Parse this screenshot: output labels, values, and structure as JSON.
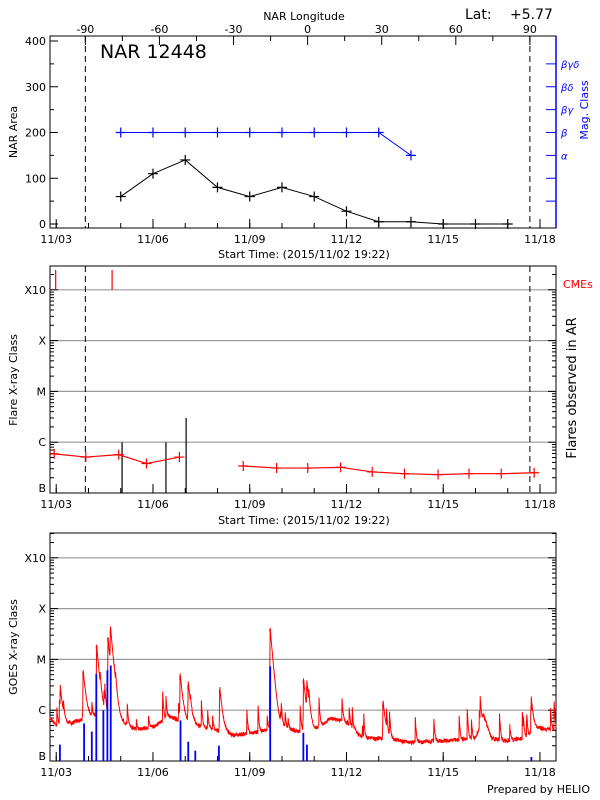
{
  "header": {
    "lat_label": "Lat:",
    "lat_value": "+5.77",
    "prepared_by": "Prepared by HELIO"
  },
  "colors": {
    "area": "#000000",
    "mag_class": "#0000ff",
    "flare": "#ff0000",
    "cme": "#ff0000",
    "goes_long": "#ff0000",
    "goes_short": "#0000ff",
    "grid": "#999999"
  },
  "chart_data": [
    {
      "type": "line",
      "title": "NAR 12448",
      "xlabel": "Start Time: (2015/11/02 19:22)",
      "ylabel": "NAR Area",
      "y2label": "Mag. Class",
      "top_axis_label": "NAR Longitude",
      "ylim": [
        0,
        400
      ],
      "yticks": [
        "0",
        "100",
        "200",
        "300",
        "400"
      ],
      "xticks": [
        "11/03",
        "11/06",
        "11/09",
        "11/12",
        "11/15",
        "11/18"
      ],
      "top_ticks": [
        "-90",
        "-60",
        "-30",
        "0",
        "30",
        "60",
        "90"
      ],
      "mag_class_levels": [
        {
          "label": "α",
          "value": 150
        },
        {
          "label": "β",
          "value": 200
        },
        {
          "label": "βγ",
          "value": 250
        },
        {
          "label": "βδ",
          "value": 300
        },
        {
          "label": "βγδ",
          "value": 350
        }
      ],
      "limb_lines": [
        "2015-11-03T21:40",
        "2015-11-17T16:30"
      ],
      "series": [
        {
          "key": "area",
          "x": [
            "2015-11-05T00:00",
            "2015-11-06T00:00",
            "2015-11-07T00:00",
            "2015-11-08T00:00",
            "2015-11-09T00:00",
            "2015-11-10T00:00",
            "2015-11-11T00:00",
            "2015-11-12T00:00",
            "2015-11-13T00:00",
            "2015-11-14T00:00",
            "2015-11-15T00:00",
            "2015-11-16T00:00",
            "2015-11-17T00:00"
          ],
          "values": [
            60,
            110,
            140,
            80,
            60,
            80,
            60,
            28,
            5,
            5,
            0,
            0,
            0
          ]
        },
        {
          "key": "mag_class",
          "x": [
            "2015-11-05T00:00",
            "2015-11-06T00:00",
            "2015-11-07T00:00",
            "2015-11-08T00:00",
            "2015-11-09T00:00",
            "2015-11-10T00:00",
            "2015-11-11T00:00",
            "2015-11-12T00:00",
            "2015-11-13T00:00",
            "2015-11-14T00:00"
          ],
          "values": [
            "β",
            "β",
            "β",
            "β",
            "β",
            "β",
            "β",
            "β",
            "β",
            "α"
          ]
        }
      ]
    },
    {
      "type": "line",
      "xlabel": "Start Time: (2015/11/02 19:22)",
      "ylabel": "Flare X-ray Class",
      "y2label": "Flares observed in AR",
      "cme_label": "CMEs",
      "yticks": [
        "B",
        "C",
        "M",
        "X",
        "X10"
      ],
      "xticks": [
        "11/03",
        "11/06",
        "11/09",
        "11/12",
        "11/15",
        "11/18"
      ],
      "limb_lines": [
        "2015-11-03T21:40",
        "2015-11-17T16:30"
      ],
      "flare_segments": [
        {
          "x": [
            "2015-11-02T22:30",
            "2015-11-03T22:00",
            "2015-11-04T22:30",
            "2015-11-05T19:10",
            "2015-11-06T19:40"
          ],
          "values": [
            "B5.9",
            "B5.1",
            "B5.7",
            "B3.8",
            "B5.1"
          ]
        },
        {
          "x": [
            "2015-11-08T19:10",
            "2015-11-09T20:00",
            "2015-11-10T19:10",
            "2015-11-11T19:40",
            "2015-11-12T19:10",
            "2015-11-13T19:10",
            "2015-11-14T20:10",
            "2015-11-15T19:10",
            "2015-11-16T19:10",
            "2015-11-17T19:40"
          ],
          "values": [
            "B3.4",
            "B3.1",
            "B3.1",
            "B3.2",
            "B2.6",
            "B2.4",
            "B2.3",
            "B2.4",
            "B2.4",
            "B2.5"
          ]
        }
      ],
      "ar_flares": [
        {
          "x": "2015-11-05T01:00",
          "value": "C1.0"
        },
        {
          "x": "2015-11-06T09:40",
          "value": "C1.0"
        },
        {
          "x": "2015-11-07T00:40",
          "value": "C3.0"
        }
      ],
      "cmes": [
        "2015-11-02T22:50",
        "2015-11-04T16:50"
      ]
    },
    {
      "type": "line",
      "ylabel": "GOES X-ray Class",
      "yticks": [
        "B",
        "C",
        "M",
        "X",
        "X10"
      ],
      "xticks": [
        "11/03",
        "11/06",
        "11/09",
        "11/12",
        "11/15",
        "11/18"
      ],
      "grid": true,
      "long_channel_background": {
        "x": [
          "2015-11-02T19:22",
          "2015-11-03T00:00",
          "2015-11-03T12:00",
          "2015-11-04T00:00",
          "2015-11-04T12:00",
          "2015-11-05T00:00",
          "2015-11-05T12:00",
          "2015-11-06T00:00",
          "2015-11-06T12:00",
          "2015-11-07T00:00",
          "2015-11-07T12:00",
          "2015-11-08T00:00",
          "2015-11-08T12:00",
          "2015-11-09T00:00",
          "2015-11-09T12:00",
          "2015-11-10T00:00",
          "2015-11-10T12:00",
          "2015-11-11T00:00",
          "2015-11-11T12:00",
          "2015-11-12T00:00",
          "2015-11-12T12:00",
          "2015-11-13T00:00",
          "2015-11-13T12:00",
          "2015-11-14T00:00",
          "2015-11-14T12:00",
          "2015-11-15T00:00",
          "2015-11-15T12:00",
          "2015-11-16T00:00",
          "2015-11-16T06:00",
          "2015-11-16T12:00",
          "2015-11-17T00:00",
          "2015-11-17T12:00",
          "2015-11-18T00:00",
          "2015-11-18T12:00"
        ],
        "values": [
          "B7.0",
          "B5.0",
          "B5.6",
          "B7.4",
          "B8.6",
          "B5.9",
          "B4.2",
          "B4.7",
          "B7.4",
          "B5.9",
          "B4.7",
          "B4.0",
          "B3.2",
          "B3.5",
          "B4.0",
          "B4.7",
          "B3.8",
          "B4.0",
          "B6.9",
          "B5.9",
          "B2.8",
          "B2.8",
          "B2.6",
          "B2.3",
          "B2.4",
          "B2.5",
          "B2.6",
          "B2.8",
          "B7.9",
          "B2.8",
          "B2.5",
          "B2.8",
          "B4.4",
          "B4.0"
        ]
      },
      "long_channel_peaks": [
        {
          "x": "2015-11-03T03:00",
          "value": "C2.3"
        },
        {
          "x": "2015-11-03T20:00",
          "value": "C5.6"
        },
        {
          "x": "2015-11-04T06:00",
          "value": "M1.9"
        },
        {
          "x": "2015-11-04T14:30",
          "value": "M2.7"
        },
        {
          "x": "2015-11-04T16:20",
          "value": "M3.7"
        },
        {
          "x": "2015-11-06T20:10",
          "value": "C4.7"
        },
        {
          "x": "2015-11-07T02:10",
          "value": "C3.1"
        },
        {
          "x": "2015-11-08T01:40",
          "value": "C2.5"
        },
        {
          "x": "2015-11-09T15:10",
          "value": "M4.1"
        },
        {
          "x": "2015-11-10T16:00",
          "value": "C3.9"
        },
        {
          "x": "2015-11-10T18:30",
          "value": "C2.9"
        },
        {
          "x": "2015-11-13T03:10",
          "value": "C1.3"
        },
        {
          "x": "2015-11-17T17:30",
          "value": "C1.2"
        }
      ],
      "short_channel_peaks": [
        {
          "x": "2015-11-03T02:40",
          "value": "B2.1"
        },
        {
          "x": "2015-11-03T20:40",
          "value": "B5.5"
        },
        {
          "x": "2015-11-04T02:24",
          "value": "B3.8"
        },
        {
          "x": "2015-11-04T05:45",
          "value": "C5.2"
        },
        {
          "x": "2015-11-04T11:00",
          "value": "C1.0"
        },
        {
          "x": "2015-11-04T14:00",
          "value": "C6.1"
        },
        {
          "x": "2015-11-04T16:30",
          "value": "C7.6"
        },
        {
          "x": "2015-11-06T20:25",
          "value": "B6.3"
        },
        {
          "x": "2015-11-07T02:10",
          "value": "B2.4"
        },
        {
          "x": "2015-11-07T07:25",
          "value": "B1.6"
        },
        {
          "x": "2015-11-08T01:00",
          "value": "B2.0"
        },
        {
          "x": "2015-11-09T15:10",
          "value": "C7.3"
        },
        {
          "x": "2015-11-10T15:50",
          "value": "B3.6"
        },
        {
          "x": "2015-11-10T18:30",
          "value": "B2.1"
        },
        {
          "x": "2015-11-17T17:30",
          "value": "B1.2"
        }
      ]
    }
  ]
}
